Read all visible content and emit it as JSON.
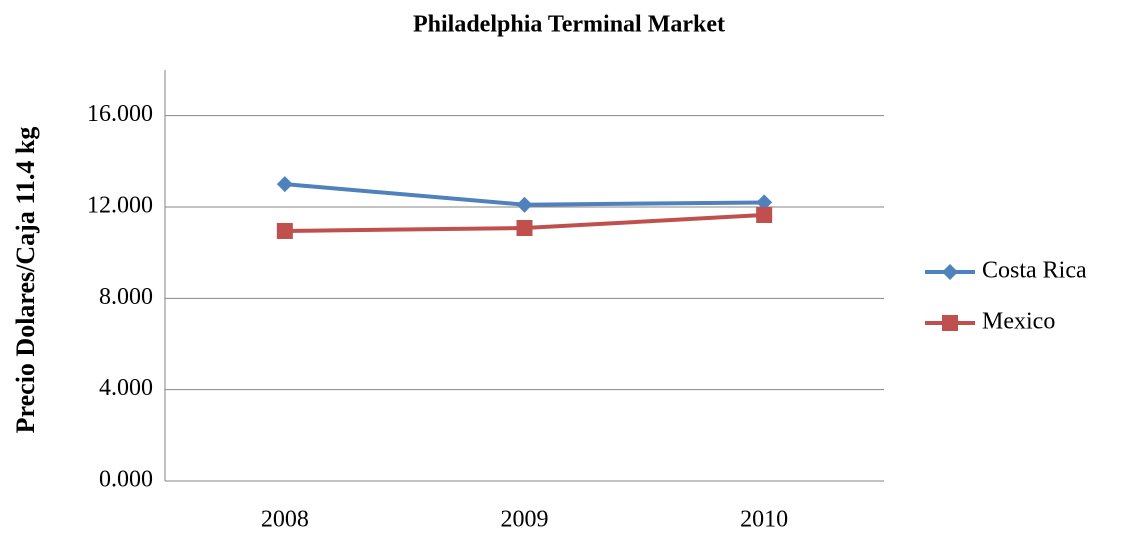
{
  "chart_data": {
    "type": "line",
    "title": "Philadelphia Terminal Market",
    "ylabel": "Precio Dolares/Caja 11.4 kg",
    "categories": [
      "2008",
      "2009",
      "2010"
    ],
    "series": [
      {
        "name": "Costa Rica",
        "color": "#4f81bd",
        "marker": "diamond",
        "values": [
          13.0,
          12.1,
          12.2
        ]
      },
      {
        "name": "Mexico",
        "color": "#c0504d",
        "marker": "square",
        "values": [
          10.95,
          11.08,
          11.65
        ]
      }
    ],
    "ylim": [
      0,
      18
    ],
    "yticks": [
      {
        "value": 0,
        "label": "0.000"
      },
      {
        "value": 4,
        "label": "4.000"
      },
      {
        "value": 8,
        "label": "8.000"
      },
      {
        "value": 12,
        "label": "12.000"
      },
      {
        "value": 16,
        "label": "16.000"
      }
    ],
    "grid": true,
    "legend": "right"
  }
}
